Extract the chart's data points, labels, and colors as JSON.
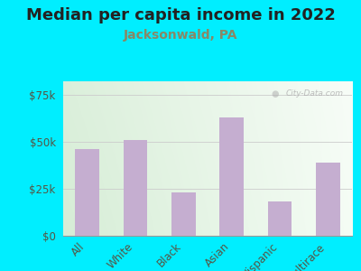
{
  "title": "Median per capita income in 2022",
  "subtitle": "Jacksonwald, PA",
  "categories": [
    "All",
    "White",
    "Black",
    "Asian",
    "Hispanic",
    "Multirace"
  ],
  "values": [
    46000,
    51000,
    23000,
    63000,
    18000,
    39000
  ],
  "bar_color": "#c5aed0",
  "background_outer": "#00eeff",
  "title_fontsize": 13,
  "subtitle_fontsize": 10,
  "subtitle_color": "#888866",
  "title_color": "#222222",
  "tick_label_color": "#555544",
  "ytick_labels": [
    "$0",
    "$25k",
    "$50k",
    "$75k"
  ],
  "ytick_values": [
    0,
    25000,
    50000,
    75000
  ],
  "ylim": [
    0,
    82000
  ],
  "watermark": "City-Data.com",
  "chart_bg_left": "#daeeda",
  "chart_bg_right": "#f5faf5",
  "chart_bg_top": "#f0f8f0",
  "chart_bg_bottom": "#d8eed8"
}
